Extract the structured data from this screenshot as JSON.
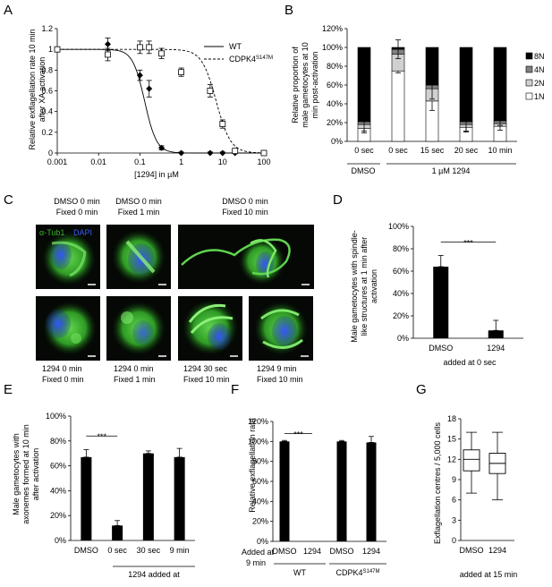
{
  "panel_letters": [
    "A",
    "B",
    "C",
    "D",
    "E",
    "F",
    "G"
  ],
  "colors": {
    "black": "#000000",
    "gray": "#808080",
    "white": "#ffffff",
    "green": "#37b52a",
    "blue": "#1f3fd0"
  },
  "chart_data": [
    {
      "panel": "A",
      "type": "line",
      "xscale": "log",
      "xlim": [
        0.001,
        100
      ],
      "ylim": [
        0,
        1.2
      ],
      "xticks": [
        "0.001",
        "0.01",
        "0.1",
        "1",
        "10",
        "100"
      ],
      "yticks": [
        "0",
        "0.2",
        "0.4",
        "0.6",
        "0.8",
        "1",
        "1.2"
      ],
      "xlabel": "[1294] in µM",
      "ylabel_lines": [
        "Relative exflagellation rate 10 min",
        "after XA activation"
      ],
      "series": [
        {
          "name": "WT",
          "marker": "filled-diamond",
          "line": "solid",
          "x": [
            0.001,
            0.0167,
            0.1,
            0.167,
            0.333,
            1,
            5,
            10,
            20,
            100
          ],
          "y": [
            1.0,
            1.05,
            0.75,
            0.62,
            0.05,
            0.0,
            0.0,
            0.0,
            0.0,
            0.0
          ],
          "err": [
            0.02,
            0.06,
            0.05,
            0.08,
            0.02,
            0.01,
            0.01,
            0.01,
            0.01,
            0.01
          ]
        },
        {
          "name": "CDPK4",
          "name_sup": "S147M",
          "marker": "open-square",
          "line": "dashed",
          "x": [
            0.001,
            0.0167,
            0.1,
            0.167,
            0.333,
            1,
            5,
            10,
            20,
            100
          ],
          "y": [
            1.0,
            0.95,
            1.02,
            1.02,
            0.96,
            0.78,
            0.6,
            0.28,
            0.02,
            0.0
          ],
          "err": [
            0.02,
            0.06,
            0.06,
            0.06,
            0.05,
            0.04,
            0.06,
            0.04,
            0.02,
            0.01
          ]
        }
      ]
    },
    {
      "panel": "B",
      "type": "bar",
      "stacked": true,
      "ylim": [
        0,
        120
      ],
      "yticks": [
        "0%",
        "20%",
        "40%",
        "60%",
        "80%",
        "100%",
        "120%"
      ],
      "ylabel_lines": [
        "Relative proportion of",
        "male gametocytes at 10",
        "min post-activation"
      ],
      "categories": [
        "0 sec",
        "0 sec",
        "15 sec",
        "20 sec",
        "10 min"
      ],
      "group_labels": [
        "DMSO",
        "1 µM 1294"
      ],
      "series": [
        {
          "name": "1N",
          "color": "#ffffff",
          "values": [
            14,
            75,
            43,
            15,
            16
          ],
          "err": [
            5,
            2,
            10,
            5,
            4
          ]
        },
        {
          "name": "2N",
          "color": "#d0d0d0",
          "values": [
            4,
            18,
            13,
            3,
            3
          ]
        },
        {
          "name": "4N",
          "color": "#808080",
          "values": [
            3,
            5,
            4,
            3,
            3
          ],
          "err": [
            10,
            10,
            15,
            10,
            5
          ]
        },
        {
          "name": "8N",
          "color": "#000000",
          "values": [
            79,
            2,
            40,
            79,
            78
          ]
        }
      ],
      "legend_order": [
        "8N",
        "4N",
        "2N",
        "1N"
      ]
    },
    {
      "panel": "D",
      "type": "bar",
      "ylim": [
        0,
        100
      ],
      "yticks": [
        "0%",
        "20%",
        "40%",
        "60%",
        "80%",
        "100%"
      ],
      "ylabel_lines": [
        "Male gametocytes with spindle-",
        "like structures at 1 min after",
        "activation"
      ],
      "categories": [
        "DMSO",
        "1294"
      ],
      "values": [
        64,
        7
      ],
      "err": [
        10,
        9
      ],
      "significance": "***",
      "xlabel": "added at 0 sec"
    },
    {
      "panel": "E",
      "type": "bar",
      "ylim": [
        0,
        100
      ],
      "yticks": [
        "0%",
        "20%",
        "40%",
        "60%",
        "80%",
        "100%"
      ],
      "ylabel_lines": [
        "Male gametocytes with",
        "axonemes formed at 10 min",
        "after activation"
      ],
      "categories": [
        "DMSO",
        "0 sec",
        "30 sec",
        "9 min"
      ],
      "values": [
        67,
        12,
        70,
        67
      ],
      "err": [
        6,
        4,
        2,
        7
      ],
      "significance": "***",
      "group_label": "1294 added at"
    },
    {
      "panel": "F",
      "type": "bar",
      "ylim": [
        0,
        120
      ],
      "yticks": [
        "0%",
        "20%",
        "40%",
        "60%",
        "80%",
        "100%",
        "120%"
      ],
      "ylabel": "Relative exflagellation rate",
      "categories": [
        "DMSO",
        "1294",
        "DMSO",
        "1294"
      ],
      "values": [
        100,
        0,
        100,
        99
      ],
      "err": [
        1,
        0,
        1,
        6
      ],
      "significance": "***",
      "group_labels": [
        "WT",
        "CDPK4"
      ],
      "group_label_sup": "S147M",
      "added_label": [
        "Added at",
        "9 min"
      ]
    },
    {
      "panel": "G",
      "type": "boxplot",
      "ylim": [
        0,
        18
      ],
      "yticks": [
        "0",
        "3",
        "6",
        "9",
        "12",
        "15",
        "18"
      ],
      "ylabel": "Exflagellation centres / 5,000 cells",
      "categories": [
        "DMSO",
        "1294"
      ],
      "boxes": [
        {
          "min": 7,
          "q1": 10.3,
          "median": 12,
          "q3": 13.4,
          "max": 16
        },
        {
          "min": 6,
          "q1": 9.9,
          "median": 11.4,
          "q3": 12.9,
          "max": 16
        }
      ],
      "xlabel": "added at 15 min"
    }
  ],
  "micro": {
    "legend": {
      "tub": "α-Tub1",
      "dapi": "DAPI"
    },
    "top_labels": [
      [
        "DMSO 0 min",
        "Fixed 0 min"
      ],
      [
        "DMSO 0 min",
        "Fixed 1 min"
      ],
      [
        "DMSO 0 min",
        "Fixed 10 min"
      ]
    ],
    "bottom_labels": [
      [
        "1294 0 min",
        "Fixed 0 min"
      ],
      [
        "1294 0 min",
        "Fixed 1 min"
      ],
      [
        "1294 30 sec",
        "Fixed 10 min"
      ],
      [
        "1294 9 min",
        "Fixed 10 min"
      ]
    ]
  }
}
